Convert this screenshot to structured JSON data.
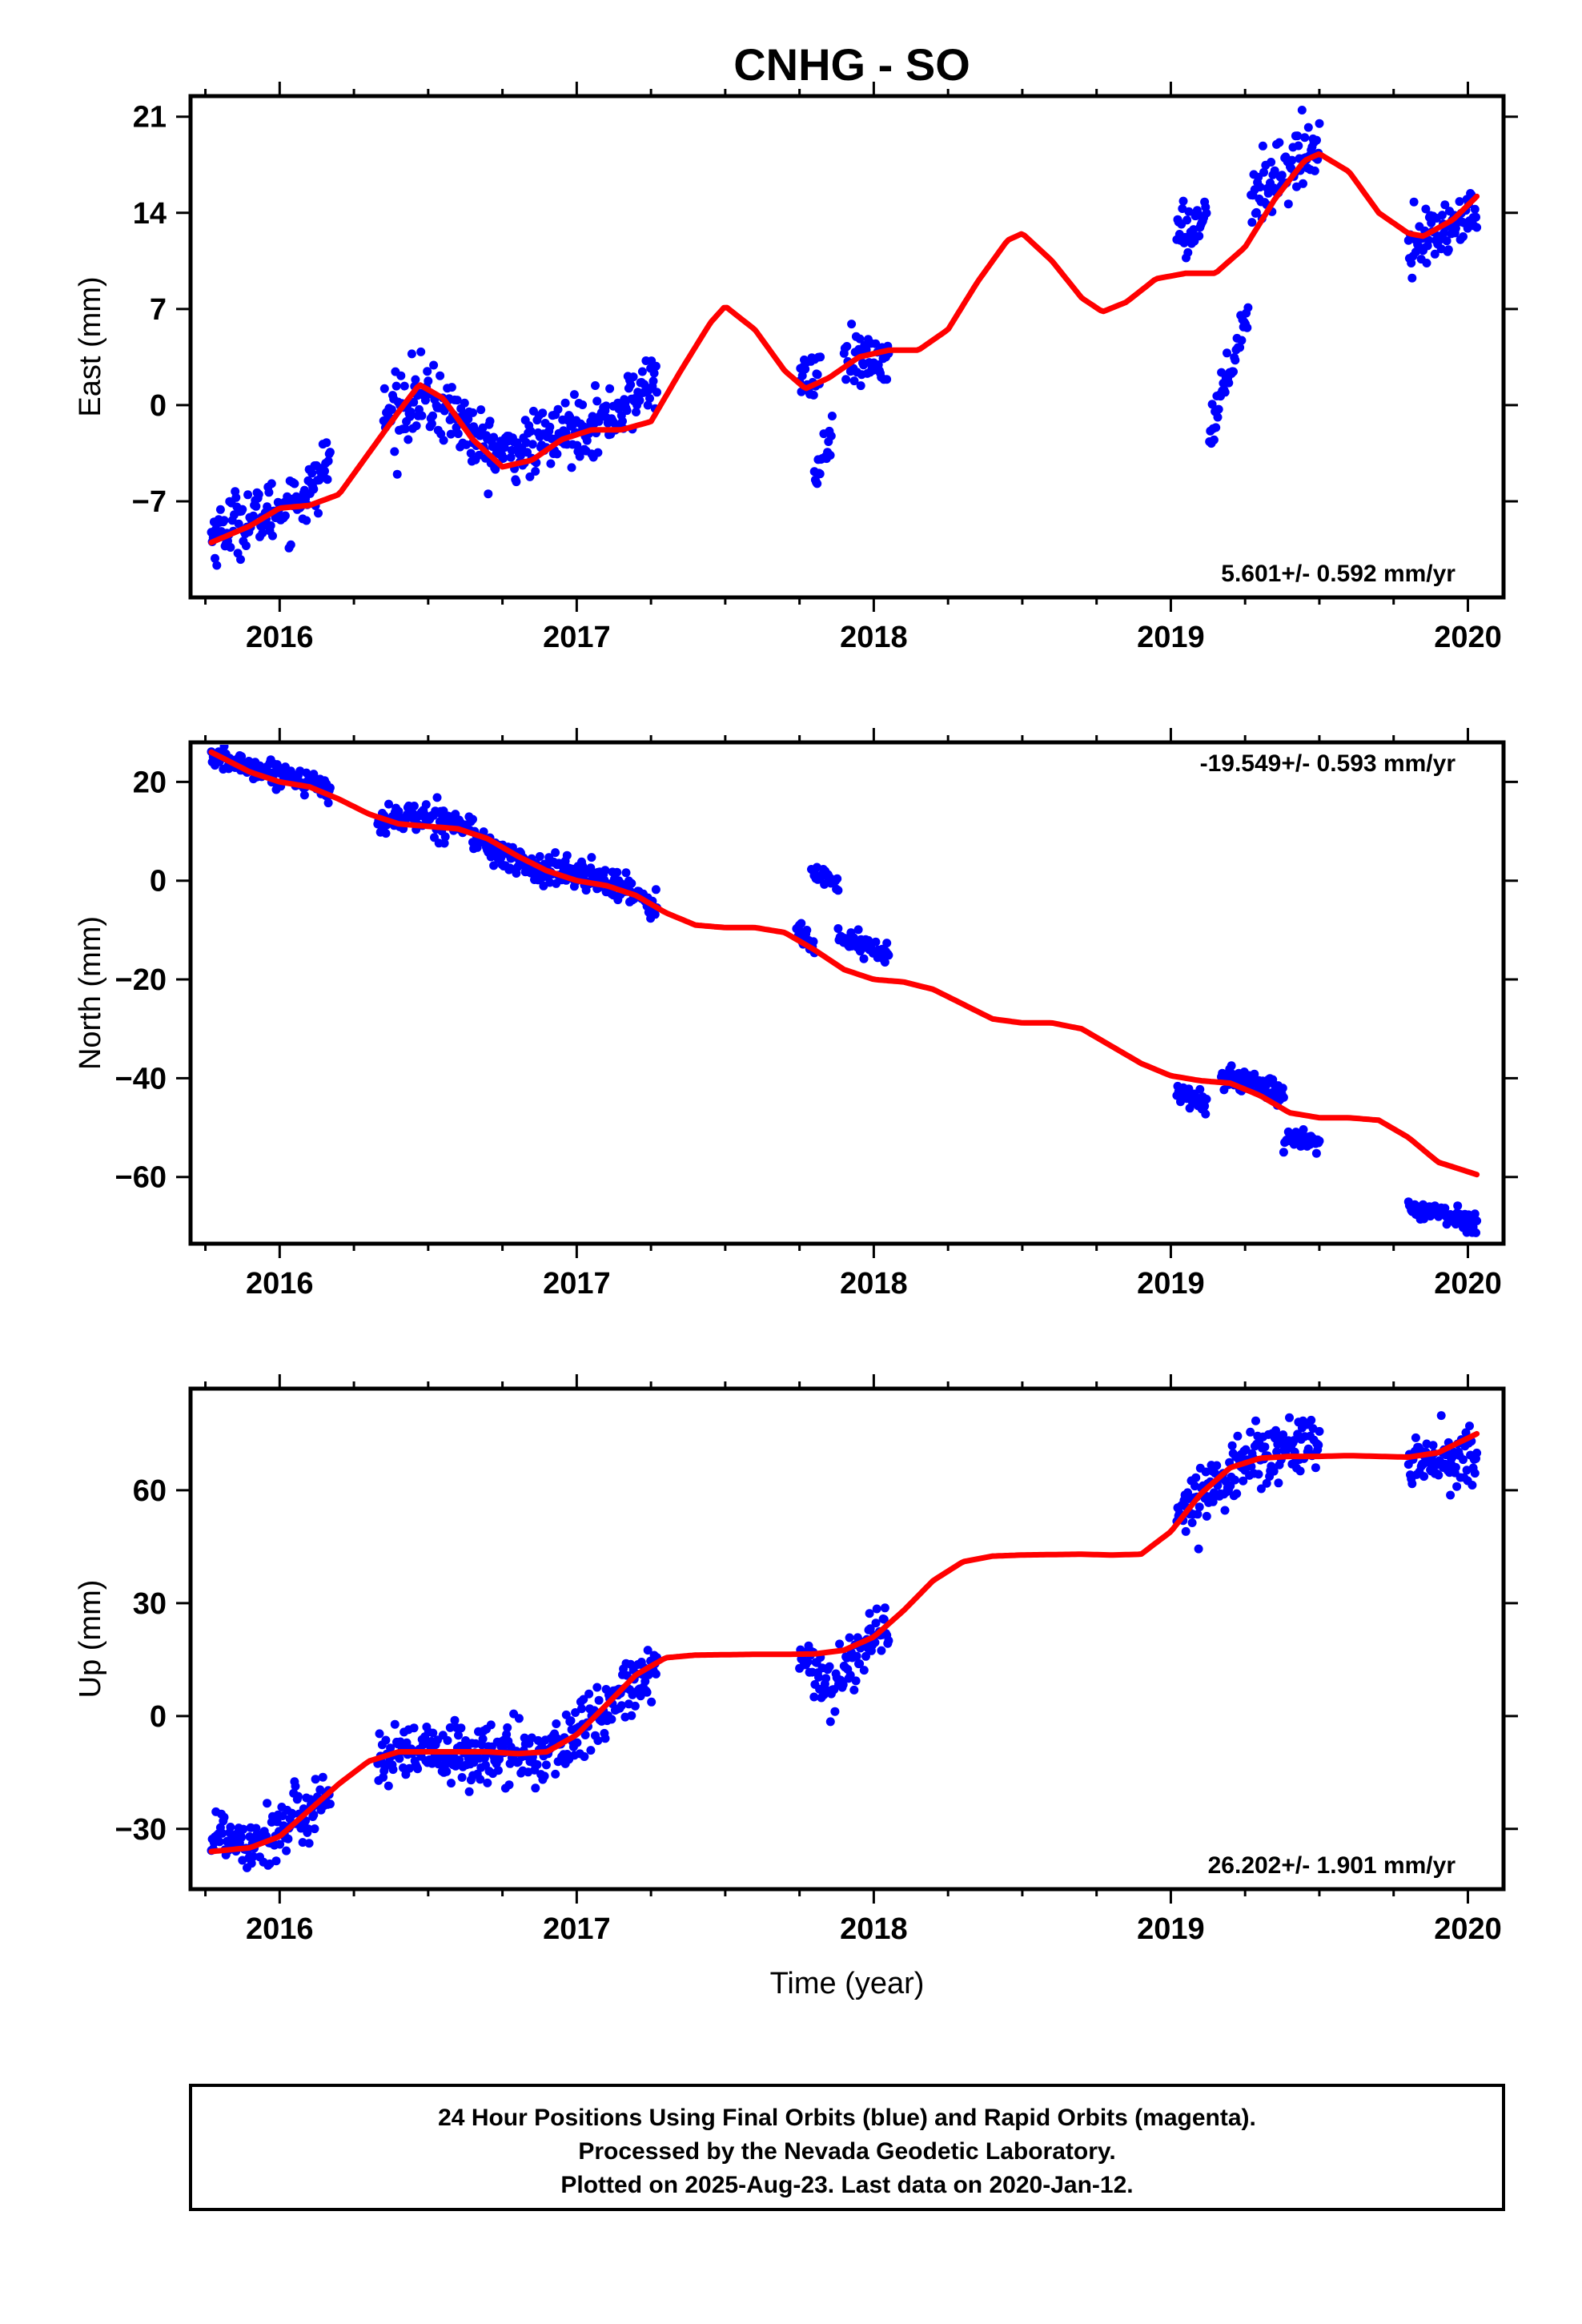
{
  "page_title": "CNHG - SO",
  "chart_data": [
    {
      "type": "scatter",
      "component": "East",
      "ylabel": "East (mm)",
      "xlabel": "",
      "xlim": [
        2015.7,
        2020.12
      ],
      "ylim": [
        -14.0,
        22.5
      ],
      "yticks": [
        -7,
        0,
        7,
        14,
        21
      ],
      "xticks": [
        2016,
        2017,
        2018,
        2019,
        2020
      ],
      "rate_label": "5.601+/- 0.592 mm/yr",
      "rate_position": "bottom-right",
      "grid": false,
      "point_color": "#0000ff",
      "fit_color": "#ff0000",
      "data_segments": [
        {
          "x": [
            2015.77,
            2015.85,
            2015.95,
            2016.05,
            2016.12,
            2016.17
          ],
          "y": [
            -9.5,
            -8.5,
            -8.0,
            -7.0,
            -6.0,
            -3.5
          ],
          "spread": 1.5
        },
        {
          "x": [
            2016.35,
            2016.45,
            2016.55,
            2016.65
          ],
          "y": [
            -1.0,
            0.5,
            0.0,
            -2.0
          ],
          "spread": 1.8
        },
        {
          "x": [
            2016.65,
            2016.75,
            2016.85,
            2017.0,
            2017.1,
            2017.2,
            2017.27
          ],
          "y": [
            -2.5,
            -3.5,
            -3.0,
            -1.5,
            -1.0,
            0.5,
            2.5
          ],
          "spread": 1.5
        },
        {
          "x": [
            2017.75,
            2017.82
          ],
          "y": [
            1.5,
            2.5
          ],
          "spread": 1.2
        },
        {
          "x": [
            2017.8,
            2017.86
          ],
          "y": [
            -5.5,
            -2.0
          ],
          "spread": 1.0
        },
        {
          "x": [
            2017.9,
            2017.98,
            2018.05
          ],
          "y": [
            3.0,
            3.0,
            3.5
          ],
          "spread": 1.3
        },
        {
          "x": [
            2019.02,
            2019.12
          ],
          "y": [
            12.0,
            14.0
          ],
          "spread": 1.5
        },
        {
          "x": [
            2019.13,
            2019.26
          ],
          "y": [
            -2.0,
            7.0
          ],
          "spread": 1.0
        },
        {
          "x": [
            2019.27,
            2019.37,
            2019.5
          ],
          "y": [
            15.0,
            17.0,
            19.0
          ],
          "spread": 1.5
        },
        {
          "x": [
            2019.8,
            2019.9,
            2020.03
          ],
          "y": [
            12.0,
            12.5,
            14.0
          ],
          "spread": 1.3
        }
      ],
      "fit_curve": {
        "x": [
          2015.77,
          2015.9,
          2016.0,
          2016.1,
          2016.2,
          2016.3,
          2016.4,
          2016.47,
          2016.55,
          2016.65,
          2016.75,
          2016.85,
          2016.95,
          2017.05,
          2017.15,
          2017.25,
          2017.35,
          2017.45,
          2017.5,
          2017.6,
          2017.7,
          2017.77,
          2017.85,
          2017.95,
          2018.05,
          2018.15,
          2018.25,
          2018.35,
          2018.45,
          2018.5,
          2018.6,
          2018.7,
          2018.77,
          2018.85,
          2018.95,
          2019.05,
          2019.15,
          2019.25,
          2019.35,
          2019.45,
          2019.5,
          2019.6,
          2019.7,
          2019.8,
          2019.85,
          2019.95,
          2020.03
        ],
        "y": [
          -10.0,
          -8.8,
          -7.5,
          -7.3,
          -6.5,
          -3.5,
          -0.5,
          1.5,
          0.5,
          -2.5,
          -4.5,
          -4.0,
          -2.5,
          -1.8,
          -1.8,
          -1.2,
          2.5,
          6.0,
          7.2,
          5.5,
          2.5,
          1.2,
          2.0,
          3.5,
          4.0,
          4.0,
          5.5,
          9.0,
          12.0,
          12.5,
          10.5,
          7.8,
          6.8,
          7.5,
          9.2,
          9.6,
          9.6,
          11.5,
          15.0,
          17.8,
          18.3,
          17.0,
          14.0,
          12.5,
          12.3,
          13.5,
          15.2
        ]
      }
    },
    {
      "type": "scatter",
      "component": "North",
      "ylabel": "North (mm)",
      "xlabel": "",
      "xlim": [
        2015.7,
        2020.12
      ],
      "ylim": [
        -73.5,
        28.0
      ],
      "yticks": [
        -60,
        -40,
        -20,
        0,
        20
      ],
      "xticks": [
        2016,
        2017,
        2018,
        2019,
        2020
      ],
      "rate_label": "-19.549+/- 0.593 mm/yr",
      "rate_position": "top-right",
      "grid": false,
      "point_color": "#0000ff",
      "fit_color": "#ff0000",
      "data_segments": [
        {
          "x": [
            2015.77,
            2015.9,
            2016.05,
            2016.17
          ],
          "y": [
            25.0,
            23.0,
            21.0,
            18.0
          ],
          "spread": 1.5
        },
        {
          "x": [
            2016.33,
            2016.45,
            2016.55,
            2016.65
          ],
          "y": [
            12.0,
            13.0,
            12.5,
            10.5
          ],
          "spread": 2.0
        },
        {
          "x": [
            2016.65,
            2016.75,
            2016.85,
            2017.0,
            2017.15,
            2017.27
          ],
          "y": [
            9.0,
            5.0,
            2.5,
            1.5,
            -1.0,
            -5.0
          ],
          "spread": 2.0
        },
        {
          "x": [
            2017.74,
            2017.8
          ],
          "y": [
            -10.0,
            -13.0
          ],
          "spread": 1.5
        },
        {
          "x": [
            2017.79,
            2017.88
          ],
          "y": [
            1.5,
            -1.0
          ],
          "spread": 1.5
        },
        {
          "x": [
            2017.88,
            2017.95,
            2018.05
          ],
          "y": [
            -11.0,
            -13.0,
            -15.0
          ],
          "spread": 1.5
        },
        {
          "x": [
            2019.02,
            2019.12
          ],
          "y": [
            -43.0,
            -45.0
          ],
          "spread": 1.8
        },
        {
          "x": [
            2019.17,
            2019.3,
            2019.38
          ],
          "y": [
            -40.0,
            -41.0,
            -43.0
          ],
          "spread": 1.5
        },
        {
          "x": [
            2019.38,
            2019.5
          ],
          "y": [
            -52.0,
            -53.5
          ],
          "spread": 1.3
        },
        {
          "x": [
            2019.8,
            2019.95,
            2020.03
          ],
          "y": [
            -66.0,
            -68.0,
            -69.5
          ],
          "spread": 1.3
        }
      ],
      "fit_curve": {
        "x": [
          2015.77,
          2015.9,
          2016.0,
          2016.1,
          2016.2,
          2016.3,
          2016.4,
          2016.5,
          2016.6,
          2016.7,
          2016.8,
          2016.9,
          2017.0,
          2017.1,
          2017.2,
          2017.3,
          2017.4,
          2017.5,
          2017.6,
          2017.7,
          2017.8,
          2017.9,
          2018.0,
          2018.1,
          2018.2,
          2018.3,
          2018.4,
          2018.5,
          2018.6,
          2018.7,
          2018.8,
          2018.9,
          2019.0,
          2019.1,
          2019.2,
          2019.3,
          2019.4,
          2019.5,
          2019.6,
          2019.7,
          2019.8,
          2019.9,
          2020.03
        ],
        "y": [
          26.0,
          22.0,
          20.0,
          19.0,
          16.5,
          13.5,
          11.5,
          11.0,
          10.5,
          8.5,
          5.0,
          2.0,
          0.0,
          -1.0,
          -3.0,
          -6.5,
          -9.0,
          -9.5,
          -9.5,
          -10.5,
          -14.0,
          -18.0,
          -20.0,
          -20.5,
          -22.0,
          -25.0,
          -28.0,
          -28.8,
          -28.8,
          -30.0,
          -33.5,
          -37.0,
          -39.5,
          -40.5,
          -41.0,
          -43.5,
          -47.0,
          -48.0,
          -48.0,
          -48.5,
          -52.0,
          -57.0,
          -59.5
        ]
      }
    },
    {
      "type": "scatter",
      "component": "Up",
      "ylabel": "Up (mm)",
      "xlabel": "Time (year)",
      "xlim": [
        2015.7,
        2020.12
      ],
      "ylim": [
        -46.0,
        87.0
      ],
      "yticks": [
        -30,
        0,
        30,
        60
      ],
      "xticks": [
        2016,
        2017,
        2018,
        2019,
        2020
      ],
      "rate_label": "26.202+/- 1.901 mm/yr",
      "rate_position": "bottom-right",
      "grid": false,
      "point_color": "#0000ff",
      "fit_color": "#ff0000",
      "data_segments": [
        {
          "x": [
            2015.77,
            2015.9,
            2016.02,
            2016.17
          ],
          "y": [
            -31.0,
            -33.0,
            -30.0,
            -20.0
          ],
          "spread": 5.5
        },
        {
          "x": [
            2016.33,
            2016.5,
            2016.7,
            2016.9,
            2017.0,
            2017.15,
            2017.27
          ],
          "y": [
            -12.0,
            -10.0,
            -10.5,
            -10.0,
            -5.0,
            5.0,
            12.0
          ],
          "spread": 5.5
        },
        {
          "x": [
            2017.75,
            2017.85,
            2017.95,
            2018.05
          ],
          "y": [
            15.0,
            8.0,
            17.0,
            25.0
          ],
          "spread": 5.0
        },
        {
          "x": [
            2019.02,
            2019.15,
            2019.3,
            2019.5
          ],
          "y": [
            53.0,
            62.0,
            70.0,
            72.0
          ],
          "spread": 5.5
        },
        {
          "x": [
            2019.8,
            2019.95,
            2020.03
          ],
          "y": [
            67.0,
            68.0,
            70.0
          ],
          "spread": 5.0
        }
      ],
      "fit_curve": {
        "x": [
          2015.77,
          2015.9,
          2016.0,
          2016.1,
          2016.2,
          2016.3,
          2016.4,
          2016.5,
          2016.6,
          2016.7,
          2016.8,
          2016.9,
          2017.0,
          2017.1,
          2017.2,
          2017.3,
          2017.4,
          2017.5,
          2017.6,
          2017.7,
          2017.8,
          2017.9,
          2018.0,
          2018.1,
          2018.2,
          2018.3,
          2018.4,
          2018.5,
          2018.6,
          2018.7,
          2018.8,
          2018.9,
          2019.0,
          2019.1,
          2019.2,
          2019.3,
          2019.4,
          2019.5,
          2019.6,
          2019.7,
          2019.8,
          2019.9,
          2020.03
        ],
        "y": [
          -36.0,
          -35.0,
          -32.0,
          -25.0,
          -18.0,
          -12.0,
          -9.5,
          -9.5,
          -9.5,
          -9.5,
          -10.0,
          -9.5,
          -5.0,
          3.0,
          11.0,
          15.5,
          16.2,
          16.3,
          16.4,
          16.4,
          16.5,
          17.5,
          21.0,
          28.0,
          36.0,
          41.0,
          42.5,
          42.8,
          42.9,
          43.0,
          42.8,
          43.0,
          49.0,
          59.0,
          66.0,
          68.5,
          69.0,
          69.0,
          69.2,
          69.0,
          68.8,
          70.0,
          75.0
        ]
      }
    }
  ],
  "footer": {
    "line1": "24 Hour Positions Using Final Orbits (blue) and Rapid Orbits (magenta).",
    "line2": "Processed by the Nevada Geodetic Laboratory.",
    "line3": "Plotted on 2025-Aug-23. Last data on 2020-Jan-12."
  }
}
